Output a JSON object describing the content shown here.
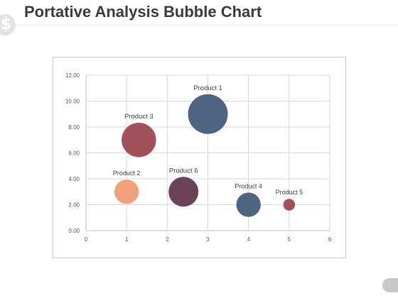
{
  "header": {
    "title": "Portative Analysis Bubble Chart",
    "badge_symbol": "$"
  },
  "chart_data": {
    "type": "scatter",
    "subtype": "bubble",
    "title": "",
    "xlabel": "",
    "ylabel": "",
    "xlim": [
      0,
      6
    ],
    "ylim": [
      0,
      12
    ],
    "x_ticks": [
      "0",
      "1",
      "2",
      "3",
      "4",
      "5",
      "6"
    ],
    "y_ticks": [
      "0.00",
      "2.00",
      "4.00",
      "6.00",
      "8.00",
      "10.00",
      "12.00"
    ],
    "grid": true,
    "legend": "none",
    "points": [
      {
        "label": "Product 1",
        "x": 3.0,
        "y": 9.0,
        "size": 8,
        "color": "#4e6582"
      },
      {
        "label": "Product 2",
        "x": 1.0,
        "y": 3.0,
        "size": 3,
        "color": "#f0a07a"
      },
      {
        "label": "Product 3",
        "x": 1.3,
        "y": 7.0,
        "size": 6,
        "color": "#a3505c"
      },
      {
        "label": "Product 4",
        "x": 4.0,
        "y": 2.0,
        "size": 3,
        "color": "#4e6582"
      },
      {
        "label": "Product 5",
        "x": 5.0,
        "y": 2.0,
        "size": 0.7,
        "color": "#a3505c"
      },
      {
        "label": "Product 6",
        "x": 2.4,
        "y": 3.0,
        "size": 4.5,
        "color": "#6b4356"
      }
    ]
  }
}
